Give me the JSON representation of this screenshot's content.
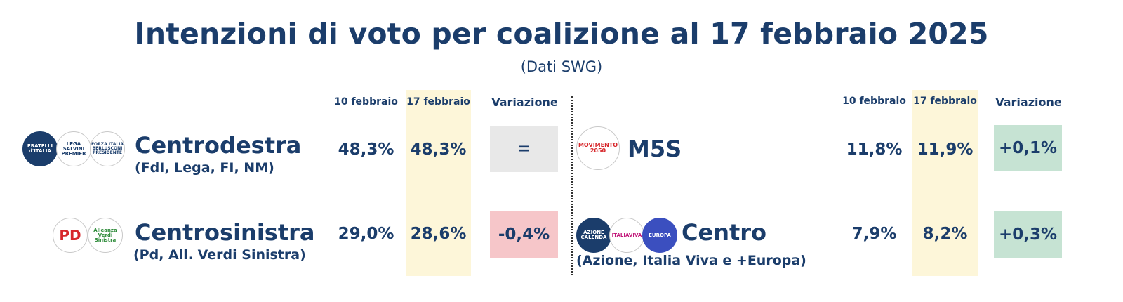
{
  "title": "Intenzioni di voto per coalizione al 17 febbraio 2025",
  "subtitle": "(Dati SWG)",
  "columns": {
    "prev": "10 febbraio",
    "curr": "17 febbraio",
    "var": "Variazione"
  },
  "colors": {
    "highlight": "#fdf6d9",
    "neutral": "#e8e8e8",
    "negative": "#f6c6c9",
    "positive": "#c6e3d3",
    "text": "#1b3d6b"
  },
  "logos": {
    "fdi": "FRATELLI d'ITALIA",
    "lega": "LEGA SALVINI PREMIER",
    "fi": "FORZA ITALIA BERLUSCONI PRESIDENTE",
    "pd": "PD",
    "avs": "Alleanza Verdi Sinistra",
    "m5s": "MOVIMENTO 2050",
    "azione": "AZIONE CALENDA",
    "iv": "ITALIAVIVA",
    "europa": "EUROPA"
  },
  "chart_data": {
    "type": "table",
    "title": "Intenzioni di voto per coalizione al 17 febbraio 2025",
    "subtitle": "(Dati SWG)",
    "columns": [
      "10 febbraio",
      "17 febbraio",
      "Variazione"
    ],
    "rows": [
      {
        "name": "Centrodestra",
        "detail": "(FdI, Lega, FI, NM)",
        "prev": "48,3%",
        "curr": "48,3%",
        "var": "=",
        "trend": "neutral"
      },
      {
        "name": "Centrosinistra",
        "detail": "(Pd, All. Verdi Sinistra)",
        "prev": "29,0%",
        "curr": "28,6%",
        "var": "-0,4%",
        "trend": "negative"
      },
      {
        "name": "M5S",
        "detail": "",
        "prev": "11,8%",
        "curr": "11,9%",
        "var": "+0,1%",
        "trend": "positive"
      },
      {
        "name": "Centro",
        "detail": "(Azione, Italia Viva e +Europa)",
        "prev": "7,9%",
        "curr": "8,2%",
        "var": "+0,3%",
        "trend": "positive"
      }
    ]
  }
}
